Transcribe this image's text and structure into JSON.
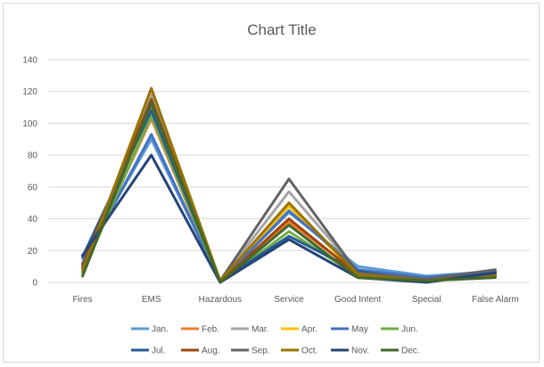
{
  "chart_data": {
    "type": "line",
    "title": "Chart Title",
    "xlabel": "",
    "ylabel": "",
    "categories": [
      "Fires",
      "EMS",
      "Hazardous",
      "Service",
      "Good Intent",
      "Special",
      "False Alarm"
    ],
    "ylim": [
      0,
      140
    ],
    "yticks": [
      0,
      20,
      40,
      60,
      80,
      100,
      120,
      140
    ],
    "grid": true,
    "legend_position": "bottom",
    "series": [
      {
        "name": "Jan.",
        "color": "#5b9bd5",
        "values": [
          15,
          90,
          1,
          44,
          10,
          4,
          7
        ]
      },
      {
        "name": "Feb.",
        "color": "#ed7d31",
        "values": [
          9,
          103,
          0,
          38,
          6,
          2,
          5
        ]
      },
      {
        "name": "Mar.",
        "color": "#a5a5a5",
        "values": [
          10,
          118,
          1,
          57,
          7,
          2,
          6
        ]
      },
      {
        "name": "Apr.",
        "color": "#ffc000",
        "values": [
          8,
          110,
          1,
          48,
          5,
          1,
          5
        ]
      },
      {
        "name": "May",
        "color": "#4472c4",
        "values": [
          12,
          93,
          0,
          45,
          8,
          3,
          7
        ]
      },
      {
        "name": "Jun.",
        "color": "#70ad47",
        "values": [
          6,
          105,
          0,
          32,
          4,
          2,
          4
        ]
      },
      {
        "name": "Jul.",
        "color": "#255e91",
        "values": [
          16,
          108,
          1,
          29,
          7,
          1,
          6
        ]
      },
      {
        "name": "Aug.",
        "color": "#9e480e",
        "values": [
          11,
          115,
          0,
          40,
          5,
          1,
          5
        ]
      },
      {
        "name": "Sep.",
        "color": "#636363",
        "values": [
          9,
          112,
          1,
          65,
          6,
          2,
          8
        ]
      },
      {
        "name": "Oct.",
        "color": "#997300",
        "values": [
          7,
          122,
          1,
          50,
          5,
          1,
          4
        ]
      },
      {
        "name": "Nov.",
        "color": "#264478",
        "values": [
          17,
          80,
          0,
          27,
          3,
          0,
          6
        ]
      },
      {
        "name": "Dec.",
        "color": "#43682b",
        "values": [
          4,
          113,
          0,
          36,
          3,
          1,
          3
        ]
      }
    ]
  }
}
